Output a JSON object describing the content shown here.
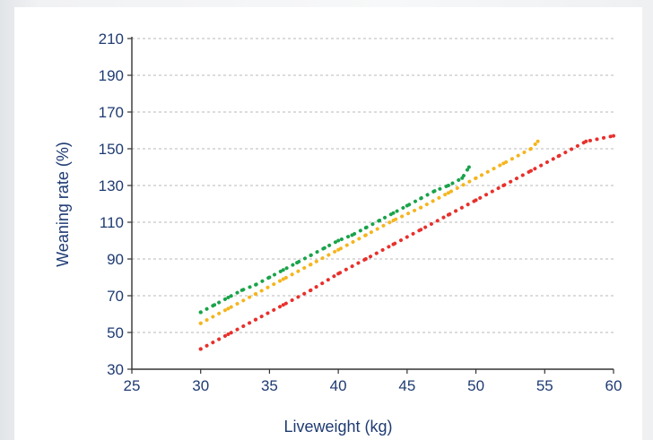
{
  "chart_data": {
    "type": "scatter",
    "xlabel": "Liveweight (kg)",
    "ylabel": "Weaning rate (%)",
    "xlim": [
      25,
      60
    ],
    "ylim": [
      30,
      210
    ],
    "xticks": [
      25,
      30,
      35,
      40,
      45,
      50,
      55,
      60
    ],
    "yticks": [
      30,
      50,
      70,
      90,
      110,
      130,
      150,
      170,
      190,
      210
    ],
    "grid": "horizontal dashed",
    "legend": "none",
    "series": [
      {
        "color": "#1aa34a",
        "marker": "dotted line",
        "x": [
          30,
          31,
          32,
          33,
          34,
          35,
          36,
          37,
          38,
          39,
          40,
          41,
          42,
          43,
          44,
          45,
          46,
          47,
          48,
          49,
          49.5
        ],
        "y": [
          61,
          65,
          69,
          73,
          76,
          80,
          84,
          88,
          92,
          96,
          100,
          103,
          107,
          111,
          115,
          119,
          123,
          127,
          130,
          134,
          140
        ]
      },
      {
        "color": "#f5b51e",
        "marker": "dotted line",
        "x": [
          30,
          32,
          34,
          36,
          38,
          40,
          42,
          44,
          46,
          48,
          50,
          52,
          54,
          54.5
        ],
        "y": [
          55,
          63,
          71,
          79,
          87,
          95,
          103,
          111,
          118,
          126,
          134,
          142,
          150,
          154
        ]
      },
      {
        "color": "#e8302c",
        "marker": "dotted line",
        "x": [
          30,
          32,
          34,
          36,
          38,
          40,
          42,
          44,
          46,
          48,
          50,
          52,
          54,
          56,
          58,
          60
        ],
        "y": [
          41,
          49,
          57,
          65,
          73,
          82,
          90,
          98,
          106,
          114,
          122,
          130,
          138,
          146,
          154,
          157
        ]
      }
    ]
  }
}
